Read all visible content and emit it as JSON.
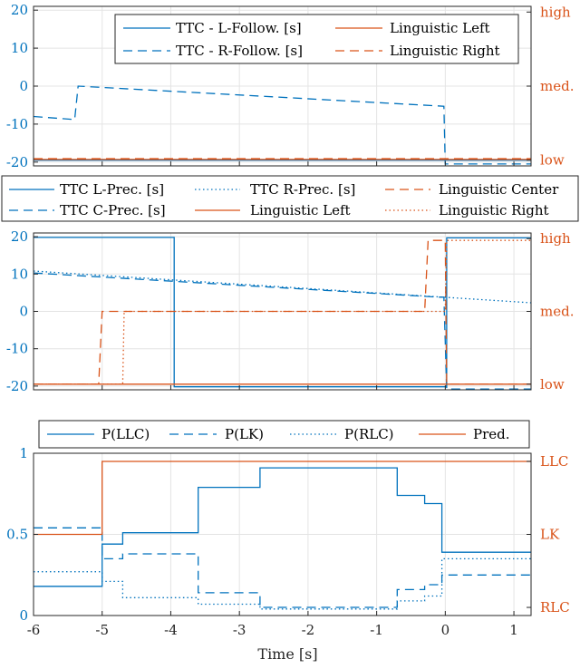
{
  "colors": {
    "blue": "#0072BD",
    "orange": "#D95319",
    "grid": "#e4e4e4",
    "axis": "#262626"
  },
  "chart_data": [
    {
      "type": "line",
      "xlim": [
        -6,
        1.25
      ],
      "ylim_left": [
        -21,
        21
      ],
      "ylim_right_ticks": [
        "low",
        "med.",
        "high"
      ],
      "left_ticks": [
        "20",
        "10",
        "0",
        "-10",
        "-20"
      ],
      "legend": [
        "TTC - L-Follow. [s]",
        "Linguistic Left",
        "TTC - R-Follow. [s]",
        "Linguistic Right"
      ],
      "series": [
        {
          "name": "TTC - L-Follow. [s]",
          "axis": "left",
          "style": "solid",
          "color": "blue",
          "x": [
            -6,
            1.25
          ],
          "y": [
            -19.5,
            -19.5
          ]
        },
        {
          "name": "TTC - R-Follow. [s]",
          "axis": "left",
          "style": "dashed",
          "color": "blue",
          "x": [
            -6,
            -5.4,
            -5.35,
            -0.02,
            0,
            1.25
          ],
          "y": [
            -8,
            -8.8,
            0,
            -5.3,
            -20.5,
            -20.5
          ]
        },
        {
          "name": "Linguistic Left",
          "axis": "left",
          "style": "solid",
          "color": "orange",
          "x": [
            -6,
            1.25
          ],
          "y": [
            -19.3,
            -19.3
          ]
        },
        {
          "name": "Linguistic Right",
          "axis": "left",
          "style": "dashed",
          "color": "orange",
          "x": [
            -6,
            1.25
          ],
          "y": [
            -19.1,
            -19.1
          ]
        }
      ]
    },
    {
      "type": "line",
      "xlim": [
        -6,
        1.25
      ],
      "ylim_left": [
        -21,
        21
      ],
      "ylim_right_ticks": [
        "low",
        "med.",
        "high"
      ],
      "left_ticks": [
        "20",
        "10",
        "0",
        "-10",
        "-20"
      ],
      "legend": [
        "TTC L-Prec. [s]",
        "TTC R-Prec. [s]",
        "Linguistic Center",
        "TTC C-Prec. [s]",
        "Linguistic Left",
        "Linguistic Right"
      ],
      "series": [
        {
          "name": "TTC L-Prec. [s]",
          "axis": "left",
          "style": "solid",
          "color": "blue",
          "x": [
            -6,
            -3.95,
            -3.95,
            0.02,
            0.02,
            1.25
          ],
          "y": [
            19.8,
            19.8,
            -20.2,
            -20.2,
            19.7,
            19.7
          ]
        },
        {
          "name": "TTC C-Prec. [s]",
          "axis": "left",
          "style": "dashed",
          "color": "blue",
          "x": [
            -6,
            -0.1,
            -0.02,
            0.02,
            1.25
          ],
          "y": [
            10.3,
            3.8,
            3.8,
            -20.8,
            -20.8
          ]
        },
        {
          "name": "TTC R-Prec. [s]",
          "axis": "left",
          "style": "dotted",
          "color": "blue",
          "x": [
            -6,
            1.25
          ],
          "y": [
            10.8,
            2.3
          ]
        },
        {
          "name": "Linguistic Center",
          "axis": "left",
          "style": "dashed",
          "color": "orange",
          "x": [
            -6,
            -5.05,
            -5.0,
            -0.3,
            -0.25,
            0,
            0.02,
            1.25
          ],
          "y": [
            -19.5,
            -19.5,
            0,
            0,
            19,
            19,
            -19.5,
            -19.5
          ]
        },
        {
          "name": "Linguistic Left",
          "axis": "left",
          "style": "solid",
          "color": "orange",
          "x": [
            -6,
            1.25
          ],
          "y": [
            -19.5,
            -19.5
          ]
        },
        {
          "name": "Linguistic Right",
          "axis": "left",
          "style": "dotted",
          "color": "orange",
          "x": [
            -6,
            -4.7,
            -4.68,
            0,
            0.02,
            1.25
          ],
          "y": [
            -19.5,
            -19.5,
            0,
            0,
            19,
            19
          ]
        }
      ]
    },
    {
      "type": "line",
      "xlim": [
        -6,
        1.25
      ],
      "ylim_left": [
        0,
        1
      ],
      "left_ticks": [
        "1",
        "0.5",
        "0"
      ],
      "right_ticks": [
        "RLC",
        "LK",
        "LLC"
      ],
      "x_ticks": [
        "-6",
        "-5",
        "-4",
        "-3",
        "-2",
        "-1",
        "0",
        "1"
      ],
      "xlabel": "Time [s]",
      "legend": [
        "P(LLC)",
        "P(LK)",
        "P(RLC)",
        "Pred."
      ],
      "series": [
        {
          "name": "P(LLC)",
          "axis": "left",
          "style": "solid",
          "color": "blue",
          "x": [
            -6,
            -5,
            -5,
            -4.7,
            -4.7,
            -3.6,
            -3.6,
            -2.7,
            -2.7,
            -0.7,
            -0.7,
            -0.3,
            -0.3,
            -0.05,
            -0.05,
            1.25
          ],
          "y": [
            0.18,
            0.18,
            0.44,
            0.44,
            0.51,
            0.51,
            0.79,
            0.79,
            0.91,
            0.91,
            0.74,
            0.74,
            0.69,
            0.69,
            0.39,
            0.39
          ]
        },
        {
          "name": "P(LK)",
          "axis": "left",
          "style": "dashed",
          "color": "blue",
          "x": [
            -6,
            -5,
            -5,
            -4.7,
            -4.7,
            -3.6,
            -3.6,
            -2.7,
            -2.7,
            -0.7,
            -0.7,
            -0.3,
            -0.3,
            -0.05,
            -0.05,
            1.25
          ],
          "y": [
            0.54,
            0.54,
            0.35,
            0.35,
            0.38,
            0.38,
            0.14,
            0.14,
            0.05,
            0.05,
            0.16,
            0.16,
            0.19,
            0.19,
            0.25,
            0.25
          ]
        },
        {
          "name": "P(RLC)",
          "axis": "left",
          "style": "dotted",
          "color": "blue",
          "x": [
            -6,
            -5,
            -5,
            -4.7,
            -4.7,
            -3.6,
            -3.6,
            -2.7,
            -2.7,
            -0.7,
            -0.7,
            -0.3,
            -0.3,
            -0.05,
            -0.05,
            1.25
          ],
          "y": [
            0.27,
            0.27,
            0.21,
            0.21,
            0.11,
            0.11,
            0.07,
            0.07,
            0.04,
            0.04,
            0.09,
            0.09,
            0.12,
            0.12,
            0.35,
            0.35
          ]
        },
        {
          "name": "Pred.",
          "axis": "left",
          "style": "solid",
          "color": "orange",
          "x": [
            -6,
            -5,
            -5,
            1.25
          ],
          "y": [
            0.5,
            0.5,
            0.95,
            0.95
          ]
        }
      ]
    }
  ]
}
